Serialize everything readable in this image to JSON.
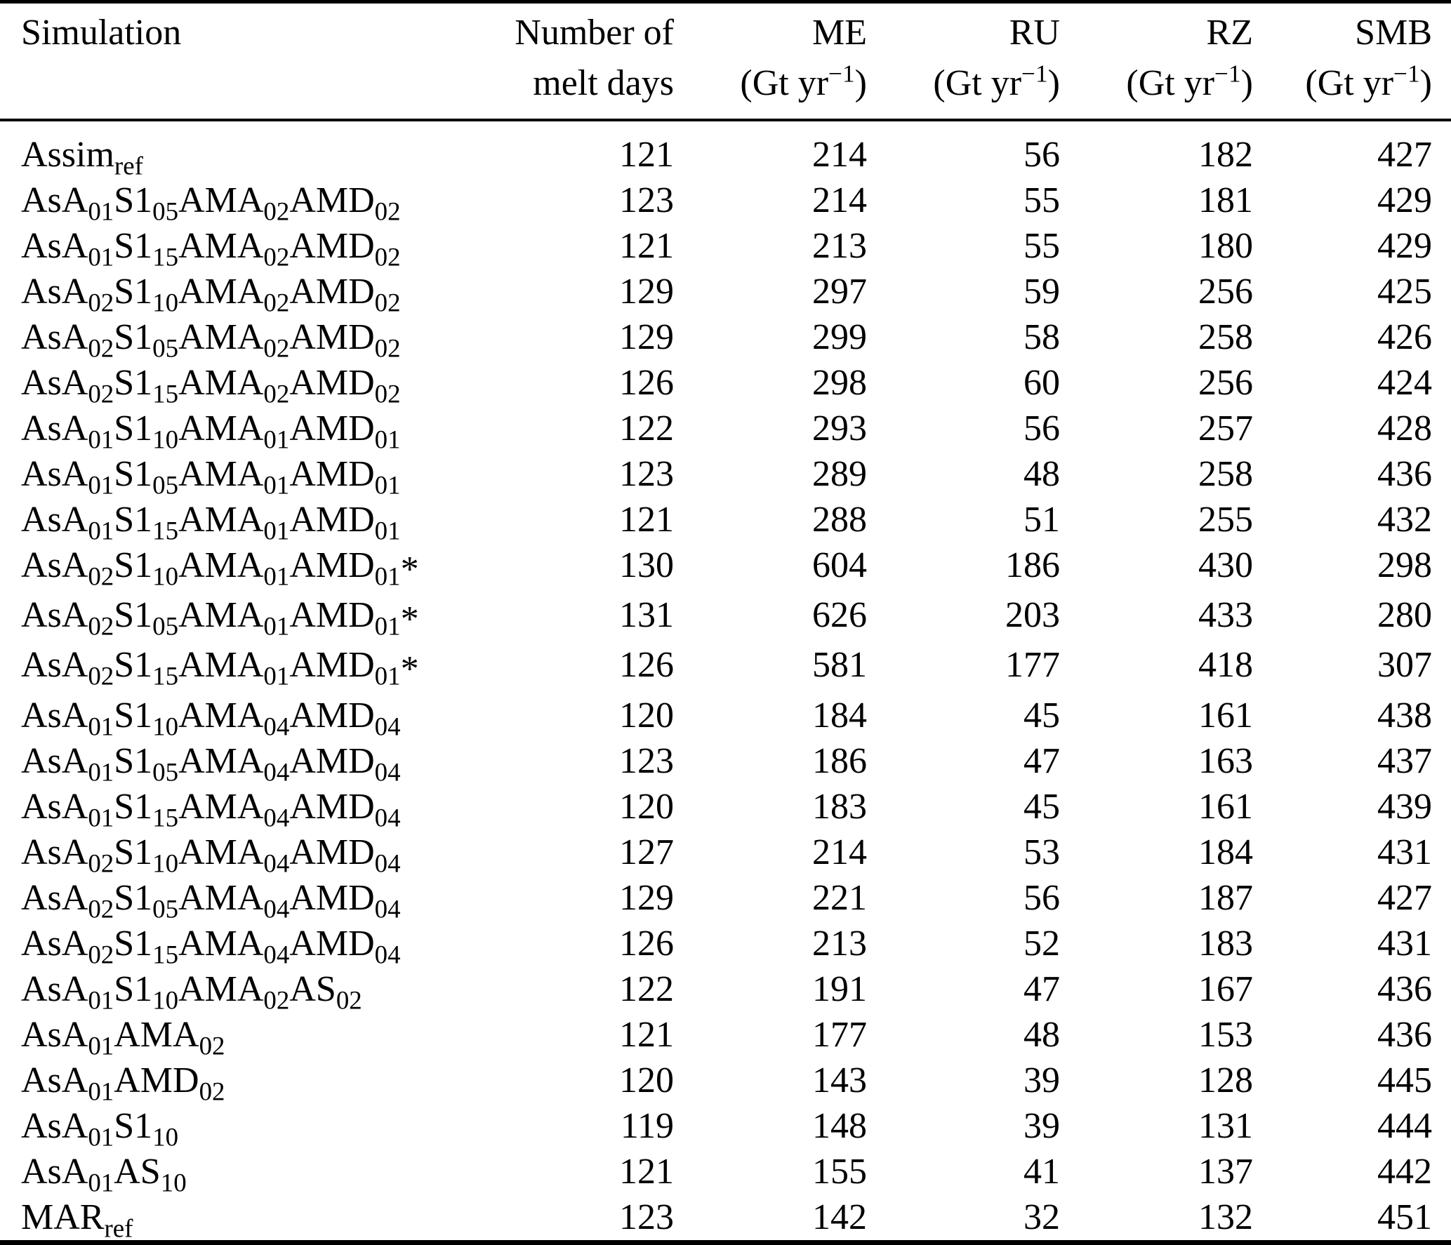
{
  "document": {
    "kind": "scientific-paper-table"
  },
  "colors": {
    "background": "#ffffff",
    "text": "#000000",
    "rule": "#000000"
  },
  "table": {
    "header": {
      "col_simulation": {
        "line1": "Simulation",
        "line2": ""
      },
      "col_melt_days": {
        "line1": "Number of",
        "line2": "melt days"
      },
      "col_me": {
        "line1": "ME",
        "line2": "(Gt yr^{−1})"
      },
      "col_ru": {
        "line1": "RU",
        "line2": "(Gt yr^{−1})"
      },
      "col_rz": {
        "line1": "RZ",
        "line2": "(Gt yr^{−1})"
      },
      "col_smb": {
        "line1": "SMB",
        "line2": "(Gt yr^{−1})"
      }
    },
    "footnote_marker": "*",
    "rows": [
      {
        "simulation": "Assim_{ref}",
        "melt_days": 121,
        "me": 214,
        "ru": 56,
        "rz": 182,
        "smb": 427
      },
      {
        "simulation": "AsA_{01}S1_{05}AMA_{02}AMD_{02}",
        "melt_days": 123,
        "me": 214,
        "ru": 55,
        "rz": 181,
        "smb": 429
      },
      {
        "simulation": "AsA_{01}S1_{15}AMA_{02}AMD_{02}",
        "melt_days": 121,
        "me": 213,
        "ru": 55,
        "rz": 180,
        "smb": 429
      },
      {
        "simulation": "AsA_{02}S1_{10}AMA_{02}AMD_{02}",
        "melt_days": 129,
        "me": 297,
        "ru": 59,
        "rz": 256,
        "smb": 425
      },
      {
        "simulation": "AsA_{02}S1_{05}AMA_{02}AMD_{02}",
        "melt_days": 129,
        "me": 299,
        "ru": 58,
        "rz": 258,
        "smb": 426
      },
      {
        "simulation": "AsA_{02}S1_{15}AMA_{02}AMD_{02}",
        "melt_days": 126,
        "me": 298,
        "ru": 60,
        "rz": 256,
        "smb": 424
      },
      {
        "simulation": "AsA_{01}S1_{10}AMA_{01}AMD_{01}",
        "melt_days": 122,
        "me": 293,
        "ru": 56,
        "rz": 257,
        "smb": 428
      },
      {
        "simulation": "AsA_{01}S1_{05}AMA_{01}AMD_{01}",
        "melt_days": 123,
        "me": 289,
        "ru": 48,
        "rz": 258,
        "smb": 436
      },
      {
        "simulation": "AsA_{01}S1_{15}AMA_{01}AMD_{01}",
        "melt_days": 121,
        "me": 288,
        "ru": 51,
        "rz": 255,
        "smb": 432
      },
      {
        "simulation": "AsA_{02}S1_{10}AMA_{01}AMD_{01}*",
        "melt_days": 130,
        "me": 604,
        "ru": 186,
        "rz": 430,
        "smb": 298
      },
      {
        "simulation": "AsA_{02}S1_{05}AMA_{01}AMD_{01}*",
        "melt_days": 131,
        "me": 626,
        "ru": 203,
        "rz": 433,
        "smb": 280
      },
      {
        "simulation": "AsA_{02}S1_{15}AMA_{01}AMD_{01}*",
        "melt_days": 126,
        "me": 581,
        "ru": 177,
        "rz": 418,
        "smb": 307
      },
      {
        "simulation": "AsA_{01}S1_{10}AMA_{04}AMD_{04}",
        "melt_days": 120,
        "me": 184,
        "ru": 45,
        "rz": 161,
        "smb": 438
      },
      {
        "simulation": "AsA_{01}S1_{05}AMA_{04}AMD_{04}",
        "melt_days": 123,
        "me": 186,
        "ru": 47,
        "rz": 163,
        "smb": 437
      },
      {
        "simulation": "AsA_{01}S1_{15}AMA_{04}AMD_{04}",
        "melt_days": 120,
        "me": 183,
        "ru": 45,
        "rz": 161,
        "smb": 439
      },
      {
        "simulation": "AsA_{02}S1_{10}AMA_{04}AMD_{04}",
        "melt_days": 127,
        "me": 214,
        "ru": 53,
        "rz": 184,
        "smb": 431
      },
      {
        "simulation": "AsA_{02}S1_{05}AMA_{04}AMD_{04}",
        "melt_days": 129,
        "me": 221,
        "ru": 56,
        "rz": 187,
        "smb": 427
      },
      {
        "simulation": "AsA_{02}S1_{15}AMA_{04}AMD_{04}",
        "melt_days": 126,
        "me": 213,
        "ru": 52,
        "rz": 183,
        "smb": 431
      },
      {
        "simulation": "AsA_{01}S1_{10}AMA_{02}AS_{02}",
        "melt_days": 122,
        "me": 191,
        "ru": 47,
        "rz": 167,
        "smb": 436
      },
      {
        "simulation": "AsA_{01}AMA_{02}",
        "melt_days": 121,
        "me": 177,
        "ru": 48,
        "rz": 153,
        "smb": 436
      },
      {
        "simulation": "AsA_{01}AMD_{02}",
        "melt_days": 120,
        "me": 143,
        "ru": 39,
        "rz": 128,
        "smb": 445
      },
      {
        "simulation": "AsA_{01}S1_{10}",
        "melt_days": 119,
        "me": 148,
        "ru": 39,
        "rz": 131,
        "smb": 444
      },
      {
        "simulation": "AsA_{01}AS_{10}",
        "melt_days": 121,
        "me": 155,
        "ru": 41,
        "rz": 137,
        "smb": 442
      },
      {
        "simulation": "MAR_{ref}",
        "melt_days": 123,
        "me": 142,
        "ru": 32,
        "rz": 132,
        "smb": 451
      }
    ]
  }
}
